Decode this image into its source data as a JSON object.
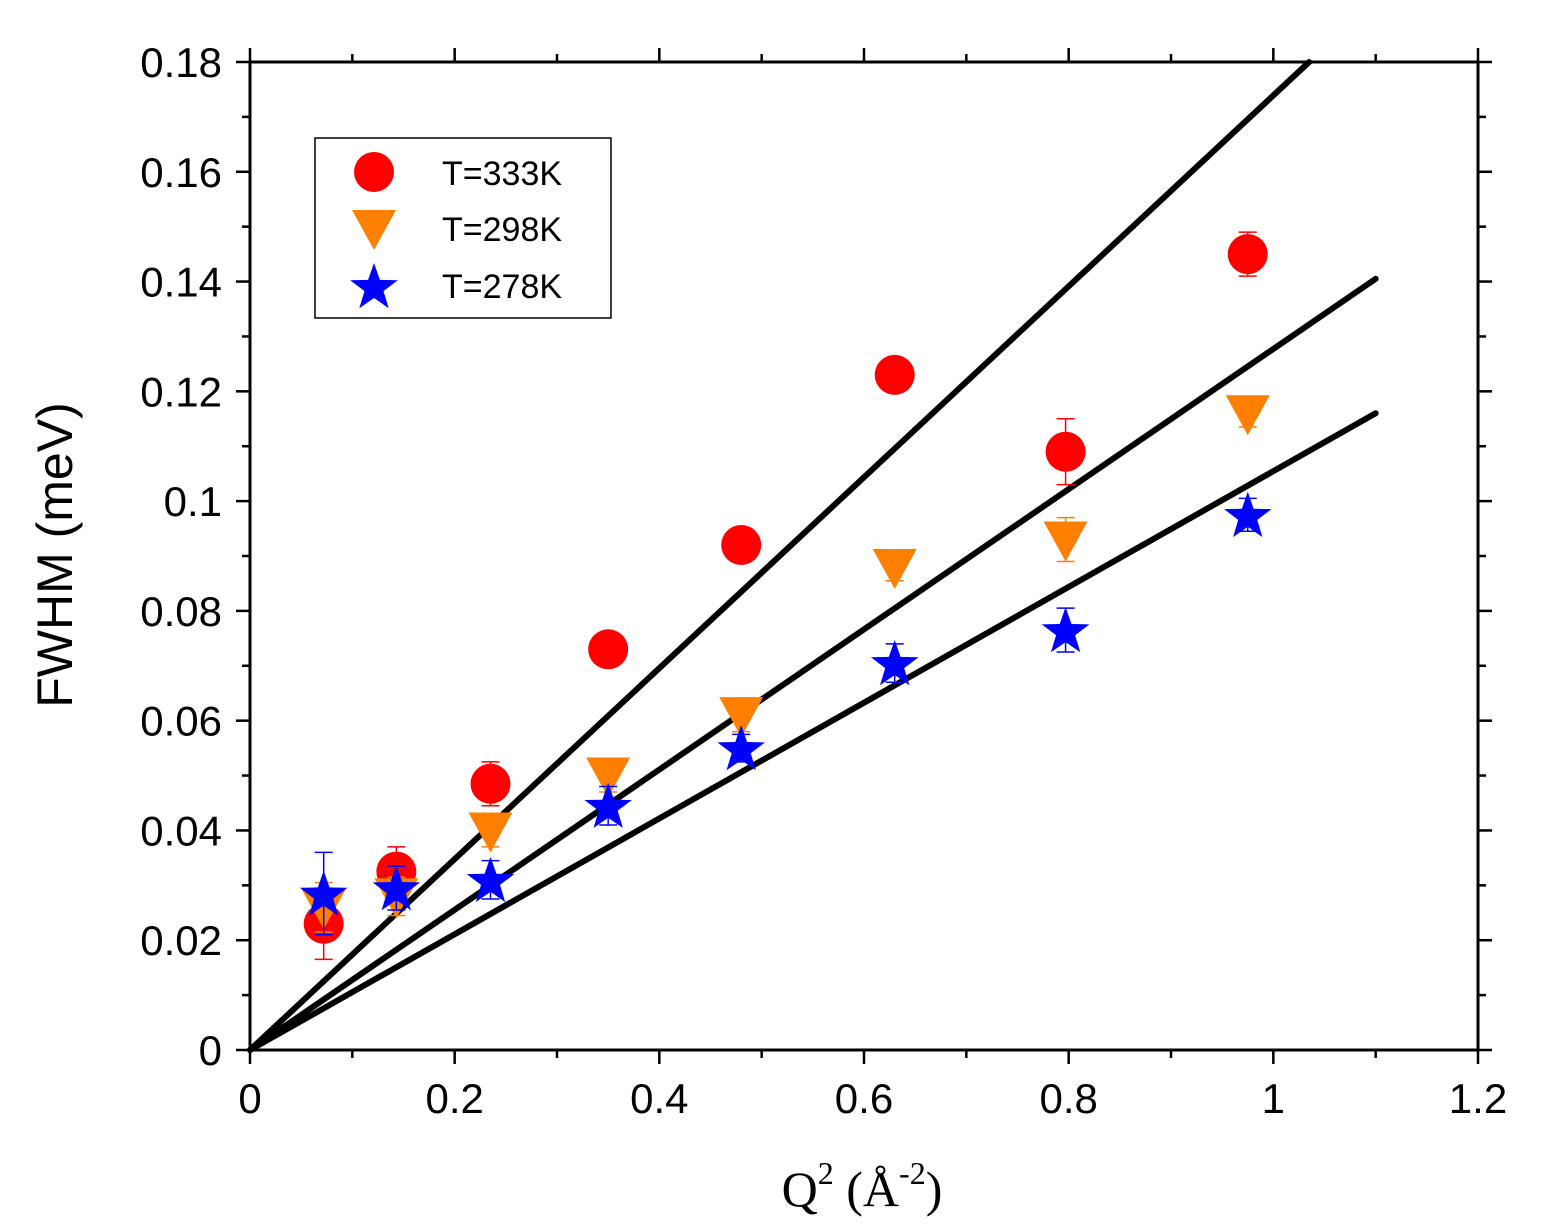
{
  "chart_data": {
    "type": "scatter",
    "title": "",
    "xlabel": {
      "base": "Q",
      "sup": "2",
      "unit_open": " (Å",
      "unit_sup": "-2",
      "unit_close": ")"
    },
    "ylabel": "FWHM (meV)",
    "xlim": [
      0,
      1.2
    ],
    "ylim": [
      0,
      0.18
    ],
    "x_ticks": [
      "0",
      "0.2",
      "0.4",
      "0.6",
      "0.8",
      "1",
      "1.2"
    ],
    "y_ticks": [
      "0",
      "0.02",
      "0.04",
      "0.06",
      "0.08",
      "0.1",
      "0.12",
      "0.14",
      "0.16",
      "0.18"
    ],
    "legend_position": "top-left",
    "series": [
      {
        "name": "T=333K",
        "marker": "circle",
        "color": "#ff0000",
        "x": [
          0.072,
          0.143,
          0.235,
          0.35,
          0.48,
          0.63,
          0.797,
          0.975
        ],
        "y": [
          0.023,
          0.0325,
          0.0485,
          0.073,
          0.092,
          0.123,
          0.109,
          0.145
        ],
        "err": [
          0.0065,
          0.0045,
          0.004,
          0.002,
          0.002,
          0.002,
          0.006,
          0.004
        ]
      },
      {
        "name": "T=298K",
        "marker": "triangle-down",
        "color": "#ff8000",
        "x": [
          0.072,
          0.143,
          0.235,
          0.35,
          0.48,
          0.63,
          0.797,
          0.975
        ],
        "y": [
          0.026,
          0.028,
          0.04,
          0.05,
          0.061,
          0.088,
          0.093,
          0.116
        ],
        "err": [
          0.0045,
          0.0035,
          0.003,
          0.003,
          0.003,
          0.0025,
          0.004,
          0.0025
        ]
      },
      {
        "name": "T=278K",
        "marker": "star",
        "color": "#0000ff",
        "x": [
          0.072,
          0.143,
          0.235,
          0.35,
          0.48,
          0.63,
          0.797,
          0.975
        ],
        "y": [
          0.0285,
          0.0295,
          0.031,
          0.0445,
          0.055,
          0.0705,
          0.0765,
          0.0975
        ],
        "err": [
          0.0075,
          0.004,
          0.0035,
          0.0035,
          0.0025,
          0.0035,
          0.004,
          0.003
        ]
      }
    ],
    "fit_lines": [
      {
        "name": "fit 333K",
        "x": [
          0,
          1.035
        ],
        "y": [
          0,
          0.18
        ],
        "color": "#000000"
      },
      {
        "name": "fit 298K",
        "x": [
          0,
          1.1
        ],
        "y": [
          0,
          0.1405
        ],
        "color": "#000000"
      },
      {
        "name": "fit 278K",
        "x": [
          0,
          1.1
        ],
        "y": [
          0,
          0.116
        ],
        "color": "#000000"
      }
    ]
  }
}
